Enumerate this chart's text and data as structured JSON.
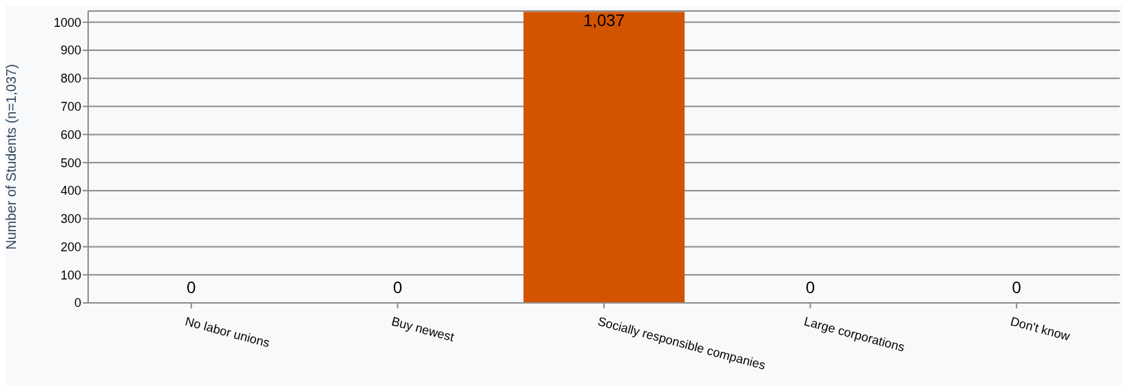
{
  "chart_data": {
    "type": "bar",
    "ylabel": "Number of Students (n=1,037)",
    "categories": [
      "No labor unions",
      "Buy newest",
      "Socially responsible companies",
      "Large corporations",
      "Don't know"
    ],
    "values": [
      0,
      0,
      1037,
      0,
      0
    ],
    "color": "#d35400",
    "value_labels": [
      "0",
      "0",
      "1,037",
      "0",
      "0"
    ],
    "ylim": [
      0,
      1040
    ],
    "yticks": [
      0,
      100,
      200,
      300,
      400,
      500,
      600,
      700,
      800,
      900,
      1000
    ],
    "grid": "y"
  }
}
